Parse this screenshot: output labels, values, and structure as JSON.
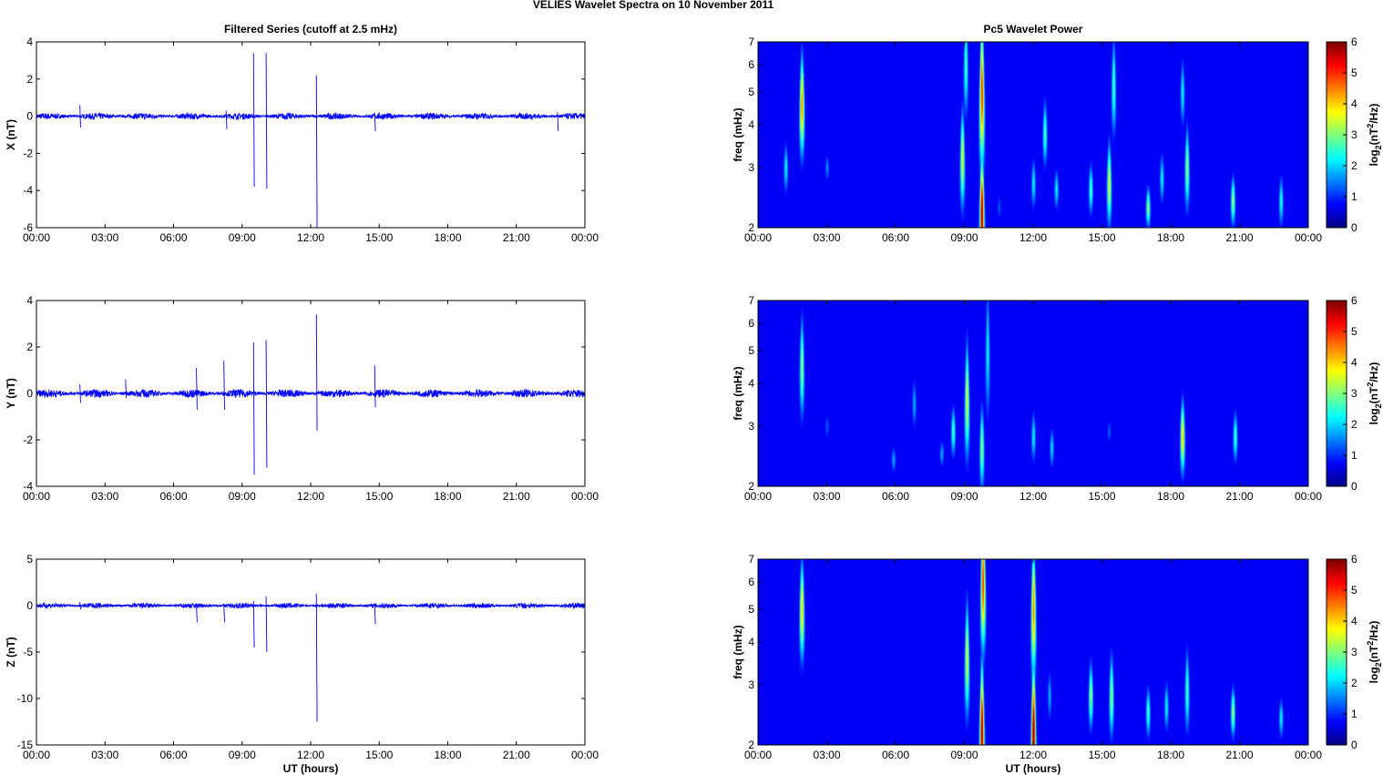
{
  "title": "VELIES Wavelet Spectra on 10 November  2011",
  "left_title": "Filtered Series (cutoff at 2.5 mHz)",
  "right_title": "Pc5 Wavelet Power",
  "xlabel": "UT (hours)",
  "colors": {
    "trace": "#0000ff"
  },
  "chart_data": [
    {
      "type": "line",
      "component": "X",
      "ylabel": "X (nT)",
      "ylim": [
        -6,
        4
      ],
      "yticks": [
        4,
        2,
        0,
        -2,
        -4,
        -6
      ],
      "xlim": [
        0,
        24
      ],
      "xticks": [
        "00:00",
        "03:00",
        "06:00",
        "09:00",
        "12:00",
        "15:00",
        "18:00",
        "21:00",
        "00:00"
      ],
      "noise_amp": 0.12,
      "spikes": [
        [
          1.9,
          0.6,
          -0.6
        ],
        [
          9.5,
          3.4,
          -3.8
        ],
        [
          10.05,
          3.4,
          -3.9
        ],
        [
          12.25,
          2.2,
          -6
        ],
        [
          8.3,
          0.3,
          -0.7
        ],
        [
          14.8,
          0.2,
          -0.8
        ],
        [
          22.8,
          0.2,
          -0.8
        ]
      ]
    },
    {
      "type": "line",
      "component": "Y",
      "ylabel": "Y (nT)",
      "ylim": [
        -4,
        4
      ],
      "yticks": [
        4,
        2,
        0,
        -2,
        -4
      ],
      "xlim": [
        0,
        24
      ],
      "xticks": [
        "00:00",
        "03:00",
        "06:00",
        "09:00",
        "12:00",
        "15:00",
        "18:00",
        "21:00",
        "00:00"
      ],
      "noise_amp": 0.12,
      "spikes": [
        [
          1.9,
          0.4,
          -0.4
        ],
        [
          3.9,
          0.6,
          -0.2
        ],
        [
          7,
          1.1,
          -0.7
        ],
        [
          8.2,
          1.4,
          -0.7
        ],
        [
          9.5,
          2.2,
          -3.5
        ],
        [
          10.05,
          2.3,
          -3.2
        ],
        [
          12.25,
          3.4,
          -1.6
        ],
        [
          14.8,
          1.2,
          -0.6
        ]
      ]
    },
    {
      "type": "line",
      "component": "Z",
      "ylabel": "Z (nT)",
      "ylim": [
        -15,
        5
      ],
      "yticks": [
        5,
        0,
        -5,
        -10,
        -15
      ],
      "xlim": [
        0,
        24
      ],
      "xticks": [
        "00:00",
        "03:00",
        "06:00",
        "09:00",
        "12:00",
        "15:00",
        "18:00",
        "21:00",
        "00:00"
      ],
      "noise_amp": 0.2,
      "spikes": [
        [
          1.9,
          0.4,
          -0.4
        ],
        [
          7,
          0.2,
          -1.8
        ],
        [
          8.2,
          0.2,
          -1.8
        ],
        [
          9.5,
          0.5,
          -4.5
        ],
        [
          10.05,
          1,
          -5
        ],
        [
          12.25,
          1.3,
          -12.5
        ],
        [
          14.8,
          0.2,
          -2
        ]
      ]
    },
    {
      "type": "heatmap",
      "component": "X",
      "ylabel": "freq (mHz)",
      "ylim": [
        2,
        7
      ],
      "yticks": [
        2,
        3,
        4,
        5,
        6,
        7
      ],
      "clim": [
        0,
        6
      ],
      "colorbar_label": "log2(nT^2/Hz)",
      "cticks": [
        0,
        1,
        2,
        3,
        4,
        5,
        6
      ],
      "xticks": [
        "00:00",
        "03:00",
        "06:00",
        "09:00",
        "12:00",
        "15:00",
        "18:00",
        "21:00",
        "00:00"
      ],
      "blobs": [
        [
          1.9,
          4.6,
          0.3,
          4.5
        ],
        [
          1.2,
          3,
          0.15,
          2
        ],
        [
          3,
          3,
          0.08,
          1.3
        ],
        [
          8.9,
          3.2,
          0.3,
          3.5
        ],
        [
          9.05,
          6,
          0.3,
          2.5
        ],
        [
          9.75,
          2.2,
          0.35,
          6
        ],
        [
          9.75,
          5,
          0.45,
          5
        ],
        [
          10.5,
          2.3,
          0.08,
          1
        ],
        [
          12,
          2.7,
          0.15,
          2
        ],
        [
          12.5,
          3.8,
          0.2,
          2.5
        ],
        [
          13,
          2.6,
          0.12,
          2
        ],
        [
          14.5,
          2.6,
          0.15,
          2.5
        ],
        [
          15.3,
          2.7,
          0.25,
          3.5
        ],
        [
          15.5,
          5.2,
          0.3,
          2.5
        ],
        [
          17,
          2.3,
          0.12,
          3
        ],
        [
          17.6,
          2.8,
          0.15,
          2
        ],
        [
          18.7,
          3,
          0.25,
          3
        ],
        [
          18.5,
          5,
          0.2,
          2
        ],
        [
          20.7,
          2.4,
          0.15,
          3
        ],
        [
          22.8,
          2.4,
          0.15,
          2.2
        ]
      ]
    },
    {
      "type": "heatmap",
      "component": "Y",
      "ylabel": "freq (mHz)",
      "ylim": [
        2,
        7
      ],
      "yticks": [
        2,
        3,
        4,
        5,
        6,
        7
      ],
      "clim": [
        0,
        6
      ],
      "colorbar_label": "log2(nT^2/Hz)",
      "cticks": [
        0,
        1,
        2,
        3,
        4,
        5,
        6
      ],
      "xticks": [
        "00:00",
        "03:00",
        "06:00",
        "09:00",
        "12:00",
        "15:00",
        "18:00",
        "21:00",
        "00:00"
      ],
      "blobs": [
        [
          1.9,
          4.5,
          0.3,
          3
        ],
        [
          3,
          3,
          0.08,
          1
        ],
        [
          5.9,
          2.4,
          0.08,
          1.5
        ],
        [
          6.8,
          3.5,
          0.15,
          1.5
        ],
        [
          8.5,
          2.9,
          0.15,
          2.5
        ],
        [
          9.1,
          3.6,
          0.35,
          3.5
        ],
        [
          9.75,
          2.6,
          0.25,
          3
        ],
        [
          10,
          5,
          0.4,
          2
        ],
        [
          12,
          2.8,
          0.15,
          2
        ],
        [
          12.8,
          2.6,
          0.12,
          1.8
        ],
        [
          15.3,
          2.9,
          0.08,
          1
        ],
        [
          18.5,
          2.8,
          0.22,
          4
        ],
        [
          20.8,
          2.8,
          0.15,
          2.5
        ],
        [
          8,
          2.5,
          0.08,
          1.5
        ]
      ]
    },
    {
      "type": "heatmap",
      "component": "Z",
      "ylabel": "freq (mHz)",
      "ylim": [
        2,
        7
      ],
      "yticks": [
        2,
        3,
        4,
        5,
        6,
        7
      ],
      "clim": [
        0,
        6
      ],
      "colorbar_label": "log2(nT^2/Hz)",
      "cticks": [
        0,
        1,
        2,
        3,
        4,
        5,
        6
      ],
      "xticks": [
        "00:00",
        "03:00",
        "06:00",
        "09:00",
        "12:00",
        "15:00",
        "18:00",
        "21:00",
        "00:00"
      ],
      "blobs": [
        [
          1.9,
          5,
          0.3,
          4
        ],
        [
          9.1,
          3.6,
          0.35,
          3.5
        ],
        [
          9.75,
          2.2,
          0.4,
          6
        ],
        [
          9.8,
          6,
          0.4,
          5
        ],
        [
          12,
          2.2,
          0.4,
          6
        ],
        [
          12,
          5,
          0.4,
          4.5
        ],
        [
          12.7,
          2.8,
          0.15,
          1.5
        ],
        [
          14.5,
          2.8,
          0.2,
          3
        ],
        [
          15.4,
          2.8,
          0.25,
          3
        ],
        [
          17,
          2.5,
          0.15,
          2.5
        ],
        [
          17.8,
          2.6,
          0.15,
          2
        ],
        [
          18.7,
          2.9,
          0.25,
          2.5
        ],
        [
          20.7,
          2.5,
          0.15,
          3
        ],
        [
          22.8,
          2.4,
          0.12,
          2
        ]
      ]
    }
  ]
}
